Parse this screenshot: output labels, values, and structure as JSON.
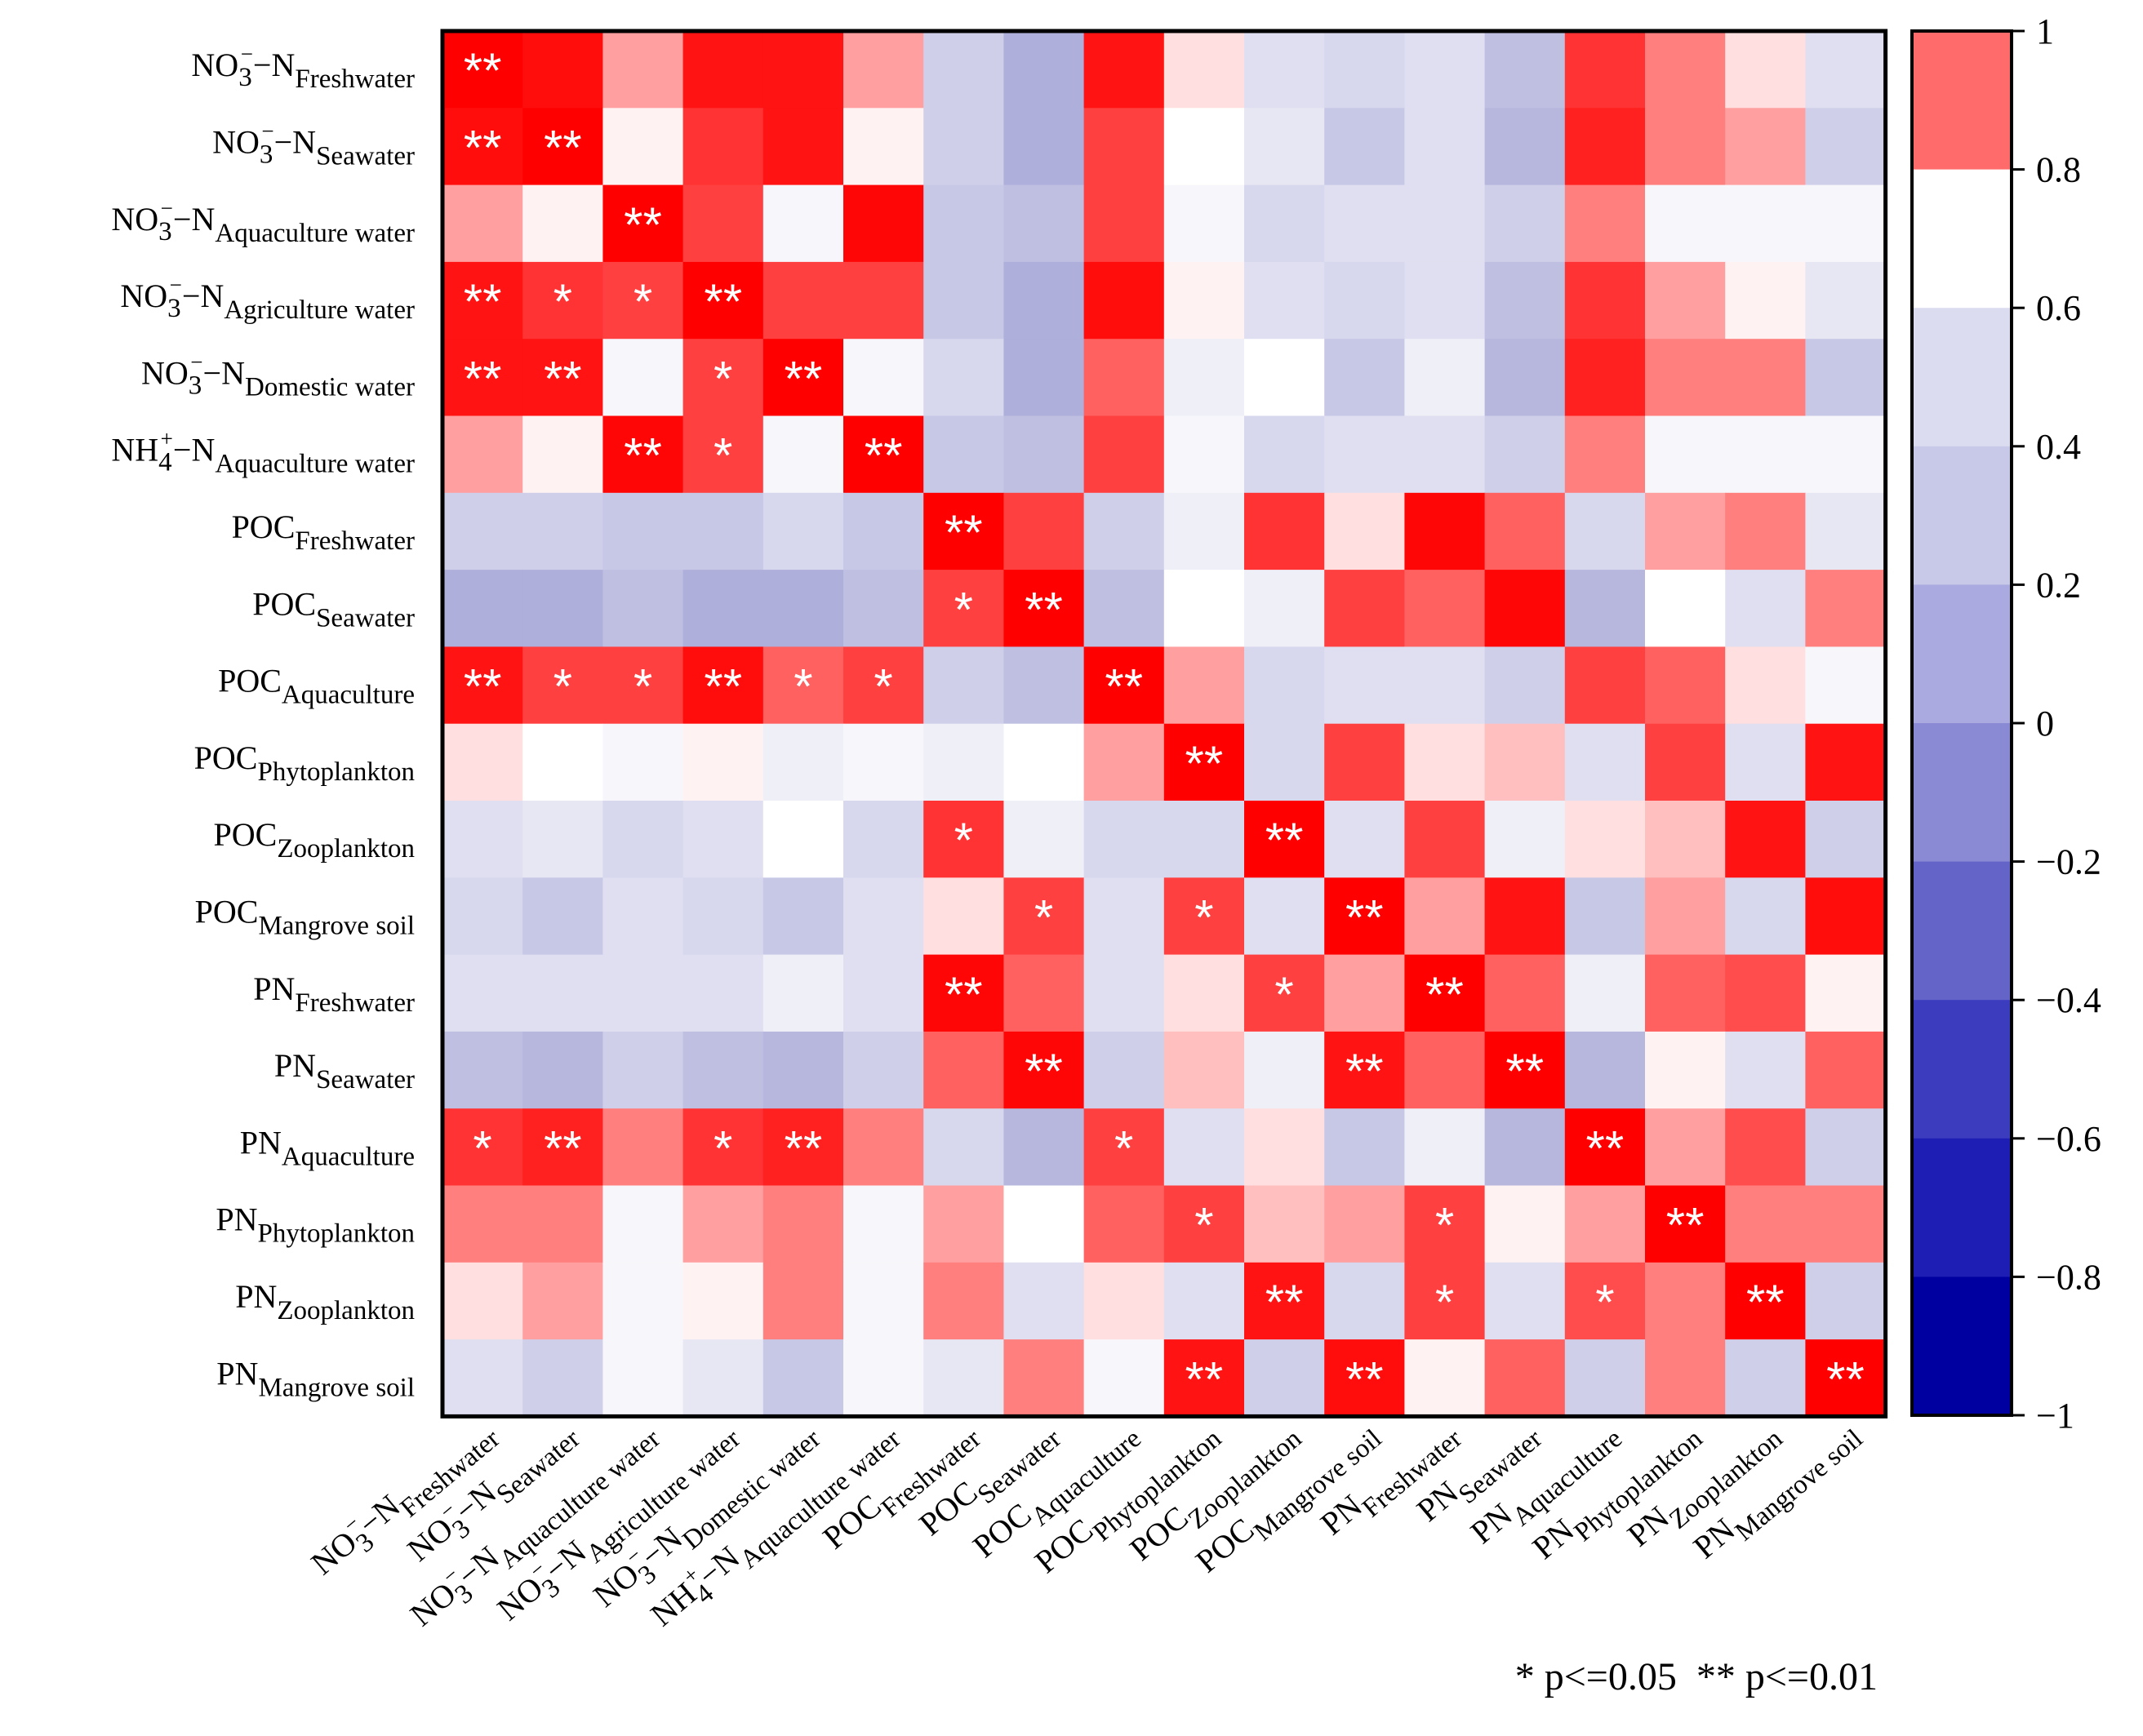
{
  "chart_data": {
    "type": "heatmap",
    "title": "",
    "variables": [
      {
        "base": "NO",
        "sub1": "3",
        "sup": "−",
        "tail": "−N",
        "subscript": "Freshwater"
      },
      {
        "base": "NO",
        "sub1": "3",
        "sup": "−",
        "tail": "−N",
        "subscript": "Seawater"
      },
      {
        "base": "NO",
        "sub1": "3",
        "sup": "−",
        "tail": "−N",
        "subscript": "Aquaculture water"
      },
      {
        "base": "NO",
        "sub1": "3",
        "sup": "−",
        "tail": "−N",
        "subscript": "Agriculture water"
      },
      {
        "base": "NO",
        "sub1": "3",
        "sup": "−",
        "tail": "−N",
        "subscript": "Domestic water"
      },
      {
        "base": "NH",
        "sub1": "4",
        "sup": "+",
        "tail": "−N",
        "subscript": "Aquaculture water"
      },
      {
        "base": "POC",
        "sub1": "",
        "sup": "",
        "tail": "",
        "subscript": "Freshwater"
      },
      {
        "base": "POC",
        "sub1": "",
        "sup": "",
        "tail": "",
        "subscript": "Seawater"
      },
      {
        "base": "POC",
        "sub1": "",
        "sup": "",
        "tail": "",
        "subscript": "Aquaculture"
      },
      {
        "base": "POC",
        "sub1": "",
        "sup": "",
        "tail": "",
        "subscript": "Phytoplankton"
      },
      {
        "base": "POC",
        "sub1": "",
        "sup": "",
        "tail": "",
        "subscript": "Zooplankton"
      },
      {
        "base": "POC",
        "sub1": "",
        "sup": "",
        "tail": "",
        "subscript": "Mangrove soil"
      },
      {
        "base": "PN",
        "sub1": "",
        "sup": "",
        "tail": "",
        "subscript": "Freshwater"
      },
      {
        "base": "PN",
        "sub1": "",
        "sup": "",
        "tail": "",
        "subscript": "Seawater"
      },
      {
        "base": "PN",
        "sub1": "",
        "sup": "",
        "tail": "",
        "subscript": "Aquaculture"
      },
      {
        "base": "PN",
        "sub1": "",
        "sup": "",
        "tail": "",
        "subscript": "Phytoplankton"
      },
      {
        "base": "PN",
        "sub1": "",
        "sup": "",
        "tail": "",
        "subscript": "Zooplankton"
      },
      {
        "base": "PN",
        "sub1": "",
        "sup": "",
        "tail": "",
        "subscript": "Mangrove soil"
      }
    ],
    "values": [
      [
        1.0,
        0.98,
        0.75,
        0.97,
        0.97,
        0.75,
        0.3,
        0.1,
        0.97,
        0.65,
        0.4,
        0.35,
        0.4,
        0.2,
        0.92,
        0.8,
        0.65,
        0.4
      ],
      [
        0.98,
        1.0,
        0.62,
        0.92,
        0.97,
        0.62,
        0.3,
        0.1,
        0.9,
        0.6,
        0.45,
        0.25,
        0.4,
        0.15,
        0.95,
        0.8,
        0.75,
        0.3
      ],
      [
        0.75,
        0.62,
        1.0,
        0.9,
        0.55,
        0.99,
        0.25,
        0.2,
        0.9,
        0.55,
        0.35,
        0.4,
        0.4,
        0.3,
        0.8,
        0.55,
        0.55,
        0.55
      ],
      [
        0.97,
        0.92,
        0.9,
        1.0,
        0.9,
        0.9,
        0.25,
        0.1,
        0.98,
        0.62,
        0.4,
        0.35,
        0.4,
        0.2,
        0.92,
        0.75,
        0.62,
        0.45
      ],
      [
        0.97,
        0.97,
        0.55,
        0.9,
        1.0,
        0.55,
        0.35,
        0.1,
        0.85,
        0.5,
        0.6,
        0.25,
        0.5,
        0.15,
        0.95,
        0.8,
        0.8,
        0.25
      ],
      [
        0.75,
        0.62,
        0.99,
        0.9,
        0.55,
        1.0,
        0.25,
        0.2,
        0.9,
        0.55,
        0.35,
        0.4,
        0.4,
        0.3,
        0.8,
        0.55,
        0.55,
        0.55
      ],
      [
        0.3,
        0.3,
        0.25,
        0.25,
        0.35,
        0.25,
        1.0,
        0.9,
        0.3,
        0.5,
        0.92,
        0.65,
        0.99,
        0.85,
        0.35,
        0.75,
        0.8,
        0.45
      ],
      [
        0.1,
        0.1,
        0.2,
        0.1,
        0.1,
        0.2,
        0.9,
        1.0,
        0.2,
        0.6,
        0.5,
        0.9,
        0.85,
        0.99,
        0.15,
        0.6,
        0.4,
        0.8
      ],
      [
        0.97,
        0.9,
        0.9,
        0.98,
        0.85,
        0.9,
        0.3,
        0.2,
        1.0,
        0.75,
        0.35,
        0.4,
        0.4,
        0.3,
        0.9,
        0.85,
        0.65,
        0.55
      ],
      [
        0.65,
        0.6,
        0.55,
        0.62,
        0.5,
        0.55,
        0.5,
        0.6,
        0.75,
        1.0,
        0.35,
        0.9,
        0.65,
        0.7,
        0.4,
        0.9,
        0.4,
        0.97
      ],
      [
        0.4,
        0.45,
        0.35,
        0.4,
        0.6,
        0.35,
        0.92,
        0.5,
        0.35,
        0.35,
        1.0,
        0.4,
        0.9,
        0.5,
        0.65,
        0.7,
        0.97,
        0.3
      ],
      [
        0.35,
        0.25,
        0.4,
        0.35,
        0.25,
        0.4,
        0.65,
        0.9,
        0.4,
        0.9,
        0.4,
        1.0,
        0.75,
        0.97,
        0.25,
        0.75,
        0.35,
        0.98
      ],
      [
        0.4,
        0.4,
        0.4,
        0.4,
        0.5,
        0.4,
        0.99,
        0.85,
        0.4,
        0.65,
        0.9,
        0.75,
        1.0,
        0.85,
        0.5,
        0.85,
        0.88,
        0.62
      ],
      [
        0.2,
        0.15,
        0.3,
        0.2,
        0.15,
        0.3,
        0.85,
        0.99,
        0.3,
        0.7,
        0.5,
        0.97,
        0.85,
        1.0,
        0.15,
        0.62,
        0.4,
        0.85
      ],
      [
        0.92,
        0.95,
        0.8,
        0.92,
        0.95,
        0.8,
        0.35,
        0.15,
        0.9,
        0.4,
        0.65,
        0.25,
        0.5,
        0.15,
        1.0,
        0.75,
        0.88,
        0.3
      ],
      [
        0.8,
        0.8,
        0.55,
        0.75,
        0.8,
        0.55,
        0.75,
        0.6,
        0.85,
        0.9,
        0.7,
        0.75,
        0.9,
        0.62,
        0.75,
        1.0,
        0.8,
        0.8
      ],
      [
        0.65,
        0.75,
        0.55,
        0.62,
        0.8,
        0.55,
        0.8,
        0.4,
        0.65,
        0.4,
        0.97,
        0.35,
        0.9,
        0.4,
        0.88,
        0.8,
        1.0,
        0.3
      ],
      [
        0.4,
        0.3,
        0.55,
        0.45,
        0.25,
        0.55,
        0.45,
        0.8,
        0.55,
        0.97,
        0.3,
        0.98,
        0.62,
        0.85,
        0.3,
        0.8,
        0.3,
        1.0
      ]
    ],
    "significance": [
      [
        "**",
        "",
        "",
        "",
        "",
        "",
        "",
        "",
        "",
        "",
        "",
        "",
        "",
        "",
        "",
        "",
        "",
        ""
      ],
      [
        "**",
        "**",
        "",
        "",
        "",
        "",
        "",
        "",
        "",
        "",
        "",
        "",
        "",
        "",
        "",
        "",
        "",
        ""
      ],
      [
        "",
        "",
        "**",
        "",
        "",
        "",
        "",
        "",
        "",
        "",
        "",
        "",
        "",
        "",
        "",
        "",
        "",
        ""
      ],
      [
        "**",
        "*",
        "*",
        "**",
        "",
        "",
        "",
        "",
        "",
        "",
        "",
        "",
        "",
        "",
        "",
        "",
        "",
        ""
      ],
      [
        "**",
        "**",
        "",
        "*",
        "**",
        "",
        "",
        "",
        "",
        "",
        "",
        "",
        "",
        "",
        "",
        "",
        "",
        ""
      ],
      [
        "",
        "",
        "**",
        "*",
        "",
        "**",
        "",
        "",
        "",
        "",
        "",
        "",
        "",
        "",
        "",
        "",
        "",
        ""
      ],
      [
        "",
        "",
        "",
        "",
        "",
        "",
        "**",
        "",
        "",
        "",
        "",
        "",
        "",
        "",
        "",
        "",
        "",
        ""
      ],
      [
        "",
        "",
        "",
        "",
        "",
        "",
        "*",
        "**",
        "",
        "",
        "",
        "",
        "",
        "",
        "",
        "",
        "",
        ""
      ],
      [
        "**",
        "*",
        "*",
        "**",
        "*",
        "*",
        "",
        "",
        "**",
        "",
        "",
        "",
        "",
        "",
        "",
        "",
        "",
        ""
      ],
      [
        "",
        "",
        "",
        "",
        "",
        "",
        "",
        "",
        "",
        "**",
        "",
        "",
        "",
        "",
        "",
        "",
        "",
        ""
      ],
      [
        "",
        "",
        "",
        "",
        "",
        "",
        "*",
        "",
        "",
        "",
        "**",
        "",
        "",
        "",
        "",
        "",
        "",
        ""
      ],
      [
        "",
        "",
        "",
        "",
        "",
        "",
        "",
        "*",
        "",
        "*",
        "",
        "**",
        "",
        "",
        "",
        "",
        "",
        ""
      ],
      [
        "",
        "",
        "",
        "",
        "",
        "",
        "**",
        "",
        "",
        "",
        "*",
        "",
        "**",
        "",
        "",
        "",
        "",
        ""
      ],
      [
        "",
        "",
        "",
        "",
        "",
        "",
        "",
        "**",
        "",
        "",
        "",
        "**",
        "",
        "**",
        "",
        "",
        "",
        ""
      ],
      [
        "*",
        "**",
        "",
        "*",
        "**",
        "",
        "",
        "",
        "*",
        "",
        "",
        "",
        "",
        "",
        "**",
        "",
        "",
        ""
      ],
      [
        "",
        "",
        "",
        "",
        "",
        "",
        "",
        "",
        "",
        "*",
        "",
        "",
        "*",
        "",
        "",
        "**",
        "",
        ""
      ],
      [
        "",
        "",
        "",
        "",
        "",
        "",
        "",
        "",
        "",
        "",
        "**",
        "",
        "*",
        "",
        "*",
        "",
        "**",
        ""
      ],
      [
        "",
        "",
        "",
        "",
        "",
        "",
        "",
        "",
        "",
        "**",
        "",
        "**",
        "",
        "",
        "",
        "",
        "",
        "**"
      ]
    ],
    "colorbar": {
      "range": [
        -1,
        1
      ],
      "ticks": [
        "1",
        "0.8",
        "0.6",
        "0.4",
        "0.2",
        "0",
        "−0.2",
        "−0.4",
        "−0.6",
        "−0.8",
        "−1"
      ],
      "colors_top_to_bottom": [
        "#ff6a6a",
        "#ffffff",
        "#dcdcf0",
        "#c8c8e8",
        "#aaaae0",
        "#8a8ad4",
        "#6464c8",
        "#3c3cbe",
        "#1e1eb4",
        "#0000a0"
      ]
    },
    "diverging_colors": {
      "max": "#ff0000",
      "mid": "#ffffff",
      "min": "#00008b"
    },
    "legend_note": "* p<=0.05  ** p<=0.01"
  }
}
